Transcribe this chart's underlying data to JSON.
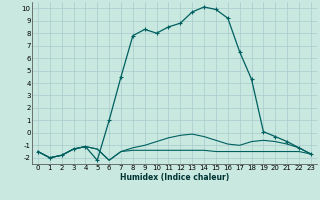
{
  "xlabel": "Humidex (Indice chaleur)",
  "xlim": [
    -0.5,
    23.5
  ],
  "ylim": [
    -2.5,
    10.5
  ],
  "xticks": [
    0,
    1,
    2,
    3,
    4,
    5,
    6,
    7,
    8,
    9,
    10,
    11,
    12,
    13,
    14,
    15,
    16,
    17,
    18,
    19,
    20,
    21,
    22,
    23
  ],
  "yticks": [
    -2,
    -1,
    0,
    1,
    2,
    3,
    4,
    5,
    6,
    7,
    8,
    9,
    10
  ],
  "bg_color": "#c8e8e0",
  "grid_color": "#a8cccc",
  "line_color": "#006060",
  "series1_x": [
    0,
    1,
    2,
    3,
    4,
    5,
    6,
    7,
    8,
    9,
    10,
    11,
    12,
    13,
    14,
    15,
    16,
    17,
    18,
    19,
    20,
    21,
    22,
    23
  ],
  "series1_y": [
    -1.5,
    -2.0,
    -1.8,
    -1.3,
    -1.1,
    -1.3,
    -2.2,
    -1.5,
    -1.4,
    -1.4,
    -1.4,
    -1.4,
    -1.4,
    -1.4,
    -1.4,
    -1.5,
    -1.5,
    -1.5,
    -1.5,
    -1.5,
    -1.5,
    -1.5,
    -1.5,
    -1.7
  ],
  "series2_x": [
    0,
    1,
    2,
    3,
    4,
    5,
    6,
    7,
    8,
    9,
    10,
    11,
    12,
    13,
    14,
    15,
    16,
    17,
    18,
    19,
    20,
    21,
    22,
    23
  ],
  "series2_y": [
    -1.5,
    -2.0,
    -1.8,
    -1.3,
    -1.1,
    -1.3,
    -2.2,
    -1.5,
    -1.2,
    -1.0,
    -0.7,
    -0.4,
    -0.2,
    -0.1,
    -0.3,
    -0.6,
    -0.9,
    -1.0,
    -0.7,
    -0.6,
    -0.7,
    -0.9,
    -1.2,
    -1.7
  ],
  "series3_x": [
    0,
    1,
    2,
    3,
    4,
    5,
    6,
    7,
    8,
    9,
    10,
    11,
    12,
    13,
    14,
    15,
    16,
    17,
    18,
    19,
    20,
    21,
    22,
    23
  ],
  "series3_y": [
    -1.5,
    -2.0,
    -1.8,
    -1.3,
    -1.1,
    -2.2,
    1.0,
    4.5,
    7.8,
    8.3,
    8.0,
    8.5,
    8.8,
    9.7,
    10.1,
    9.9,
    9.2,
    6.5,
    4.3,
    0.1,
    -0.3,
    -0.7,
    -1.2,
    -1.7
  ],
  "xlabel_fontsize": 5.5,
  "tick_fontsize": 5.0
}
